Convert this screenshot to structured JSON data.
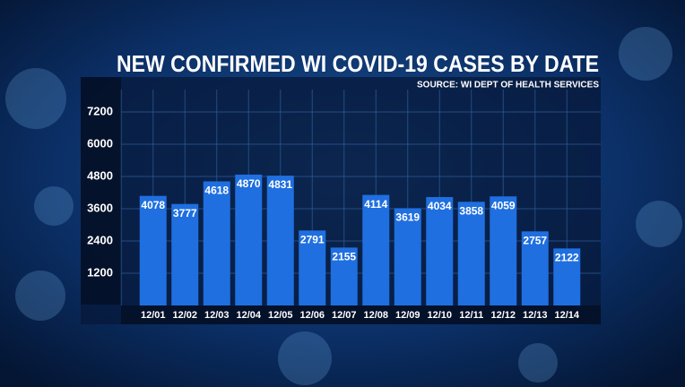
{
  "chart_data": {
    "type": "bar",
    "title": "NEW CONFIRMED WI COVID-19 CASES BY DATE",
    "subtitle": "SOURCE: WI DEPT OF HEALTH SERVICES",
    "categories": [
      "12/01",
      "12/02",
      "12/03",
      "12/04",
      "12/05",
      "12/06",
      "12/07",
      "12/08",
      "12/09",
      "12/10",
      "12/11",
      "12/12",
      "12/13",
      "12/14"
    ],
    "values": [
      4078,
      3777,
      4618,
      4870,
      4831,
      2791,
      2155,
      4114,
      3619,
      4034,
      3858,
      4059,
      2757,
      2122
    ],
    "color": "#1f6fe0",
    "ylim": [
      0,
      8400
    ],
    "yticks": [
      1200,
      2400,
      3600,
      4800,
      6000,
      7200
    ],
    "grid": true
  }
}
